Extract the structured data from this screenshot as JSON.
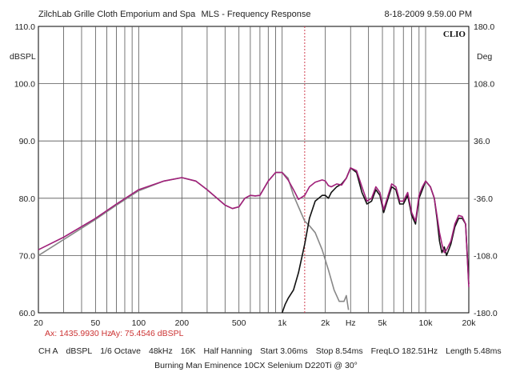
{
  "header": {
    "left": "ZilchLab Grille Cloth Emporium and Spa",
    "center": "MLS - Frequency Response",
    "right": "8-18-2009 9.59.00 PM",
    "brand": "CLIO"
  },
  "footer": {
    "cursor_x": "Ax: 1435.9930 Hz",
    "cursor_y": "Ay: 75.4546 dBSPL",
    "settings": [
      "CH A",
      "dBSPL",
      "1/6 Octave",
      "48kHz",
      "16K",
      "Half Hanning",
      "Start 3.06ms",
      "Stop 8.54ms",
      "FreqLO 182.51Hz",
      "Length 5.48ms"
    ],
    "caption": "Burning Man Eminence 10CX Selenium D220Ti @ 30°"
  },
  "chart_data": {
    "type": "line",
    "title": "MLS - Frequency Response",
    "xscale": "log",
    "xlim": [
      20,
      20000
    ],
    "ylim": [
      60,
      110
    ],
    "y2lim": [
      -180,
      180
    ],
    "ylabel": "dBSPL",
    "y2label": "Deg",
    "xlabel": "Hz",
    "x_ticks": [
      {
        "v": 20,
        "t": "20"
      },
      {
        "v": 50,
        "t": "50"
      },
      {
        "v": 100,
        "t": "100"
      },
      {
        "v": 200,
        "t": "200"
      },
      {
        "v": 500,
        "t": "500"
      },
      {
        "v": 1000,
        "t": "1k"
      },
      {
        "v": 2000,
        "t": "2k"
      },
      {
        "v": 3000,
        "t": "Hz"
      },
      {
        "v": 5000,
        "t": "5k"
      },
      {
        "v": 10000,
        "t": "10k"
      },
      {
        "v": 20000,
        "t": "20k"
      }
    ],
    "y_ticks": [
      {
        "v": 60,
        "t": "60.0"
      },
      {
        "v": 70,
        "t": "70.0"
      },
      {
        "v": 80,
        "t": "80.0"
      },
      {
        "v": 90,
        "t": "90.0"
      },
      {
        "v": 100,
        "t": "100.0"
      },
      {
        "v": 110,
        "t": "110.0"
      }
    ],
    "y2_ticks": [
      {
        "v": 180,
        "t": "180.0"
      },
      {
        "v": 108,
        "t": "108.0"
      },
      {
        "v": 36,
        "t": "36.0"
      },
      {
        "v": -36,
        "t": "-36.0"
      },
      {
        "v": -108,
        "t": "-108.0"
      },
      {
        "v": -180,
        "t": "-180.0"
      }
    ],
    "cursor_x": 1436,
    "series": [
      {
        "color": "#888888",
        "points": [
          [
            20,
            70.0
          ],
          [
            30,
            72.8
          ],
          [
            50,
            76.3
          ],
          [
            70,
            78.8
          ],
          [
            100,
            81.3
          ],
          [
            150,
            83.0
          ],
          [
            200,
            83.6
          ],
          [
            250,
            83.0
          ],
          [
            300,
            81.5
          ],
          [
            400,
            78.8
          ],
          [
            450,
            78.2
          ],
          [
            500,
            78.5
          ],
          [
            550,
            80.0
          ],
          [
            600,
            80.5
          ],
          [
            650,
            80.4
          ],
          [
            700,
            80.5
          ],
          [
            800,
            83.0
          ],
          [
            900,
            84.5
          ],
          [
            1000,
            84.5
          ],
          [
            1100,
            83.5
          ],
          [
            1200,
            80.5
          ],
          [
            1300,
            78.5
          ],
          [
            1436,
            76.0
          ],
          [
            1550,
            75.2
          ],
          [
            1700,
            74.0
          ],
          [
            1900,
            71.0
          ],
          [
            2100,
            67.5
          ],
          [
            2300,
            64.0
          ],
          [
            2500,
            62.0
          ],
          [
            2700,
            62.0
          ],
          [
            2800,
            63.0
          ],
          [
            2900,
            60.5
          ]
        ]
      },
      {
        "color": "#111111",
        "points": [
          [
            1000,
            60.0
          ],
          [
            1050,
            61.5
          ],
          [
            1100,
            62.5
          ],
          [
            1200,
            64.0
          ],
          [
            1300,
            67.0
          ],
          [
            1436,
            72.0
          ],
          [
            1550,
            76.5
          ],
          [
            1700,
            79.5
          ],
          [
            1900,
            80.5
          ],
          [
            2000,
            80.5
          ],
          [
            2100,
            80.0
          ],
          [
            2200,
            81.0
          ],
          [
            2400,
            82.0
          ],
          [
            2600,
            82.5
          ],
          [
            2800,
            83.5
          ],
          [
            3000,
            85.3
          ],
          [
            3300,
            84.5
          ],
          [
            3600,
            81.0
          ],
          [
            3900,
            79.0
          ],
          [
            4200,
            79.5
          ],
          [
            4500,
            81.5
          ],
          [
            4800,
            80.5
          ],
          [
            5100,
            77.5
          ],
          [
            5400,
            79.5
          ],
          [
            5800,
            82.0
          ],
          [
            6200,
            81.5
          ],
          [
            6600,
            79.0
          ],
          [
            7000,
            79.0
          ],
          [
            7500,
            80.5
          ],
          [
            8000,
            77.0
          ],
          [
            8500,
            75.5
          ],
          [
            9000,
            80.0
          ],
          [
            9500,
            81.5
          ],
          [
            10000,
            83.0
          ],
          [
            10800,
            82.0
          ],
          [
            11500,
            80.0
          ],
          [
            12000,
            76.5
          ],
          [
            12500,
            72.5
          ],
          [
            13000,
            70.5
          ],
          [
            13500,
            71.5
          ],
          [
            14000,
            70.0
          ],
          [
            15000,
            72.0
          ],
          [
            16000,
            75.0
          ],
          [
            17000,
            76.5
          ],
          [
            18000,
            76.5
          ],
          [
            19000,
            75.5
          ],
          [
            20000,
            65.0
          ]
        ]
      },
      {
        "color": "#a0207a",
        "points": [
          [
            20,
            71.0
          ],
          [
            30,
            73.2
          ],
          [
            50,
            76.5
          ],
          [
            70,
            79.0
          ],
          [
            100,
            81.5
          ],
          [
            150,
            83.0
          ],
          [
            200,
            83.6
          ],
          [
            250,
            83.0
          ],
          [
            300,
            81.5
          ],
          [
            400,
            78.8
          ],
          [
            450,
            78.2
          ],
          [
            500,
            78.5
          ],
          [
            550,
            80.0
          ],
          [
            600,
            80.5
          ],
          [
            650,
            80.4
          ],
          [
            700,
            80.5
          ],
          [
            800,
            83.0
          ],
          [
            900,
            84.5
          ],
          [
            1000,
            84.5
          ],
          [
            1100,
            83.2
          ],
          [
            1200,
            81.5
          ],
          [
            1300,
            79.8
          ],
          [
            1436,
            80.5
          ],
          [
            1550,
            82.0
          ],
          [
            1700,
            82.8
          ],
          [
            1900,
            83.2
          ],
          [
            2000,
            83.0
          ],
          [
            2100,
            82.2
          ],
          [
            2200,
            82.0
          ],
          [
            2400,
            82.5
          ],
          [
            2600,
            82.3
          ],
          [
            2800,
            83.5
          ],
          [
            3000,
            85.3
          ],
          [
            3300,
            84.8
          ],
          [
            3600,
            82.0
          ],
          [
            3900,
            79.5
          ],
          [
            4200,
            80.0
          ],
          [
            4500,
            82.0
          ],
          [
            4800,
            81.0
          ],
          [
            5100,
            78.0
          ],
          [
            5400,
            80.0
          ],
          [
            5800,
            82.5
          ],
          [
            6200,
            82.0
          ],
          [
            6600,
            79.5
          ],
          [
            7000,
            79.5
          ],
          [
            7500,
            81.0
          ],
          [
            8000,
            77.5
          ],
          [
            8500,
            76.0
          ],
          [
            9000,
            80.5
          ],
          [
            9500,
            82.0
          ],
          [
            10000,
            83.0
          ],
          [
            10800,
            82.0
          ],
          [
            11500,
            80.0
          ],
          [
            12000,
            77.0
          ],
          [
            12500,
            74.0
          ],
          [
            13000,
            72.0
          ],
          [
            13500,
            70.5
          ],
          [
            14000,
            71.0
          ],
          [
            15000,
            72.5
          ],
          [
            16000,
            75.5
          ],
          [
            17000,
            77.0
          ],
          [
            18000,
            76.8
          ],
          [
            19000,
            75.5
          ],
          [
            20000,
            64.5
          ]
        ]
      }
    ]
  }
}
